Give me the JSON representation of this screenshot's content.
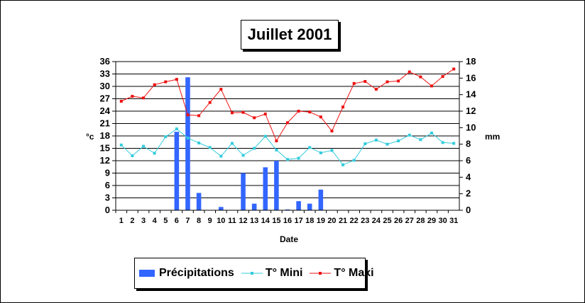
{
  "title": "Juillet 2001",
  "chart_data": {
    "type": "bar+line",
    "title": "Juillet 2001",
    "xlabel": "Date",
    "ylabel_left": "°c",
    "ylabel_right": "mm",
    "x": [
      1,
      2,
      3,
      4,
      5,
      6,
      7,
      8,
      9,
      10,
      11,
      12,
      13,
      14,
      15,
      16,
      17,
      18,
      19,
      20,
      21,
      22,
      23,
      24,
      25,
      26,
      27,
      28,
      29,
      30,
      31
    ],
    "y_left": {
      "range": [
        0,
        36
      ],
      "ticks": [
        0,
        3,
        6,
        9,
        12,
        15,
        18,
        21,
        24,
        27,
        30,
        33,
        36
      ]
    },
    "y_right": {
      "range": [
        0,
        18
      ],
      "ticks": [
        0,
        2,
        4,
        6,
        8,
        10,
        12,
        14,
        16,
        18
      ]
    },
    "grid": "horizontal",
    "legend_position": "bottom",
    "series": [
      {
        "name": "Précipitations",
        "kind": "bar",
        "axis": "right",
        "color": "#3366ff",
        "values": [
          0,
          0,
          0,
          0,
          0,
          9.5,
          16.1,
          2.1,
          0,
          0.4,
          0,
          4.5,
          0.8,
          5.2,
          6.0,
          0.1,
          1.1,
          0.8,
          2.5,
          0,
          0,
          0,
          0,
          0,
          0,
          0,
          0,
          0,
          0,
          0,
          0
        ]
      },
      {
        "name": "T° Mini",
        "kind": "line",
        "axis": "left",
        "color": "#33ccdd",
        "values": [
          15.8,
          13.2,
          15.5,
          13.8,
          17.8,
          19.7,
          17.5,
          16.3,
          15.2,
          13.1,
          16.2,
          13.3,
          15.0,
          17.9,
          14.6,
          12.3,
          12.6,
          15.2,
          13.9,
          14.5,
          11.0,
          12.1,
          16.1,
          17.0,
          16.0,
          16.8,
          18.2,
          17.1,
          18.7,
          16.4,
          16.2
        ]
      },
      {
        "name": "T° Maxi",
        "kind": "line",
        "axis": "left",
        "color": "#ee1111",
        "values": [
          26.4,
          27.6,
          27.2,
          30.4,
          31.1,
          31.7,
          23.1,
          22.9,
          26.1,
          29.3,
          23.6,
          23.7,
          22.4,
          23.3,
          16.8,
          21.2,
          24.0,
          23.8,
          22.6,
          19.2,
          25.0,
          30.7,
          31.2,
          29.3,
          31.1,
          31.3,
          33.5,
          32.3,
          30.1,
          32.4,
          34.2
        ]
      }
    ]
  }
}
